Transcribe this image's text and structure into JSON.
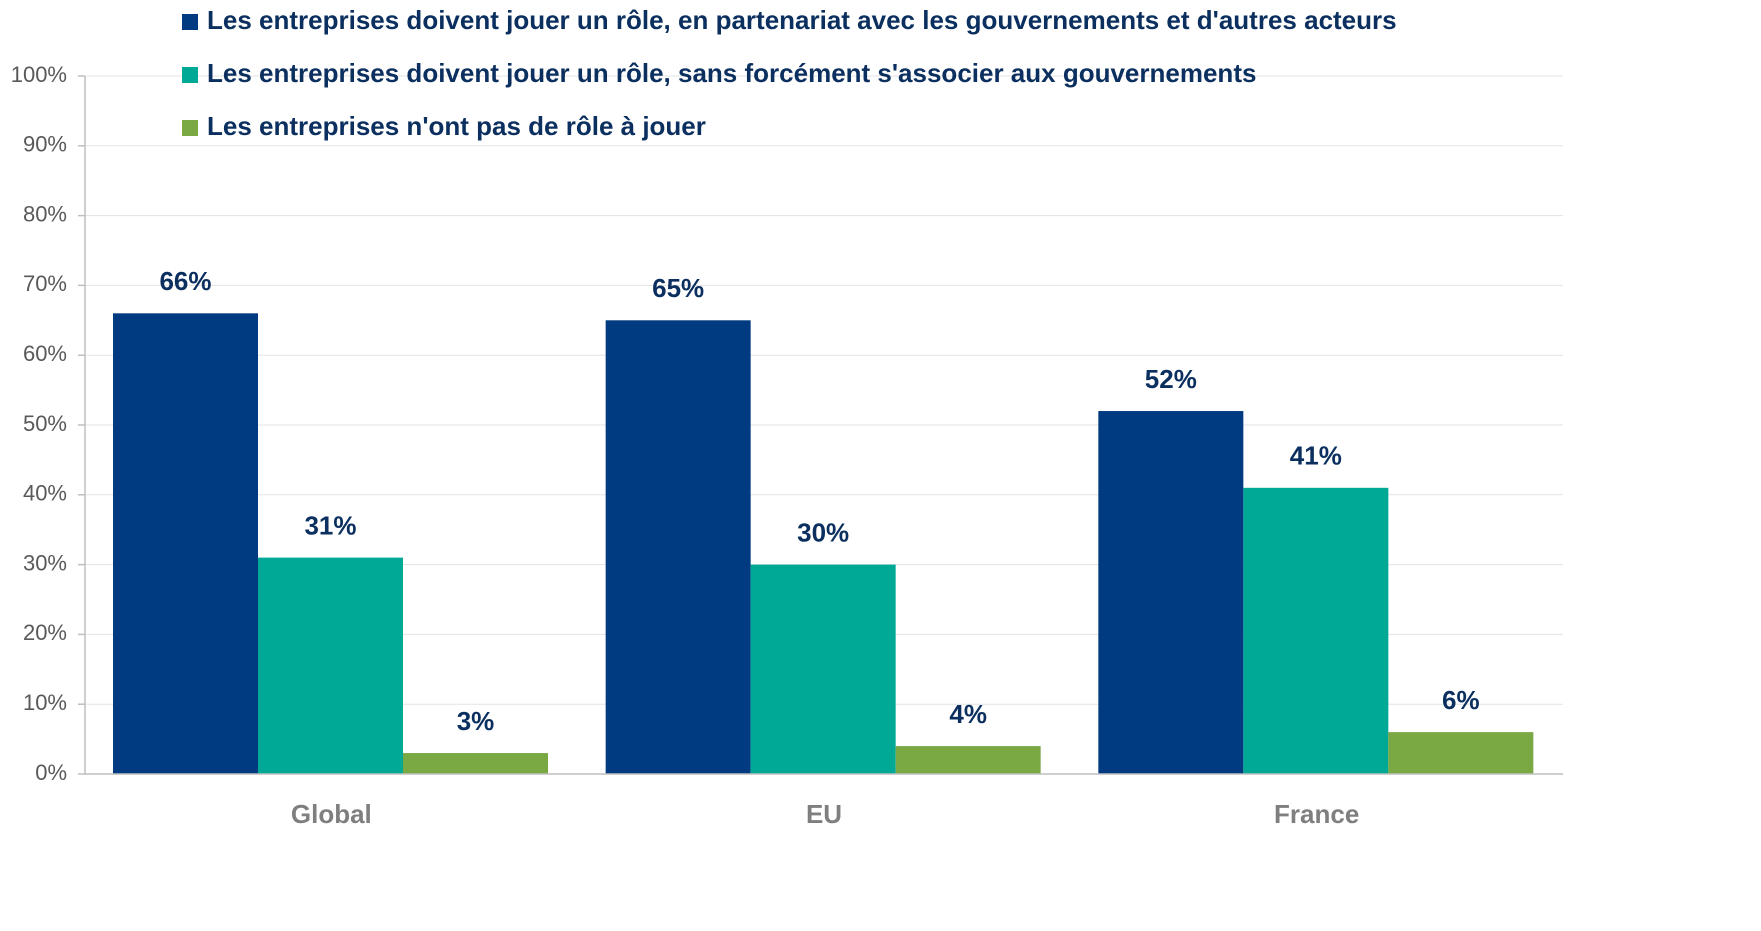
{
  "chart_data": {
    "type": "bar",
    "categories": [
      "Global",
      "EU",
      "France"
    ],
    "series": [
      {
        "name": "Les entreprises doivent jouer un rôle, en partenariat avec les gouvernements et d'autres acteurs",
        "color": "#003a80",
        "values": [
          66,
          65,
          52
        ],
        "value_labels": [
          "66%",
          "65%",
          "52%"
        ]
      },
      {
        "name": "Les entreprises doivent jouer un rôle, sans forcément s'associer aux gouvernements",
        "color": "#00a896",
        "values": [
          31,
          30,
          41
        ],
        "value_labels": [
          "31%",
          "30%",
          "41%"
        ]
      },
      {
        "name": "Les entreprises n'ont pas de rôle à jouer",
        "color": "#7aa843",
        "values": [
          3,
          4,
          6
        ],
        "value_labels": [
          "3%",
          "4%",
          "6%"
        ]
      }
    ],
    "ylim": [
      0,
      100
    ],
    "yticks": [
      {
        "value": 0,
        "label": "0%"
      },
      {
        "value": 10,
        "label": "10%"
      },
      {
        "value": 20,
        "label": "20%"
      },
      {
        "value": 30,
        "label": "30%"
      },
      {
        "value": 40,
        "label": "40%"
      },
      {
        "value": 50,
        "label": "50%"
      },
      {
        "value": 60,
        "label": "60%"
      },
      {
        "value": 70,
        "label": "70%"
      },
      {
        "value": 80,
        "label": "80%"
      },
      {
        "value": 90,
        "label": "90%"
      },
      {
        "value": 100,
        "label": "100%"
      }
    ],
    "grid": true
  }
}
